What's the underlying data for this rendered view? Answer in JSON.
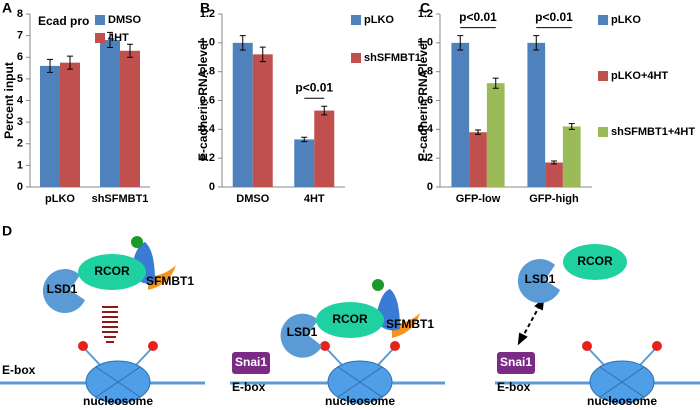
{
  "panel_labels": [
    "A",
    "B",
    "C",
    "D"
  ],
  "chart_data": [
    {
      "type": "bar",
      "title": "Ecad pro",
      "y_label": "Percent input",
      "categories": [
        "pLKO",
        "shSFMBT1"
      ],
      "series": [
        {
          "name": "DMSO",
          "color": "#4f81bd",
          "values": [
            5.6,
            6.8
          ],
          "errors": [
            0.3,
            0.35
          ]
        },
        {
          "name": "4HT",
          "color": "#c0504d",
          "values": [
            5.75,
            6.3
          ],
          "errors": [
            0.3,
            0.3
          ]
        }
      ],
      "ylim": [
        0,
        8
      ],
      "yticks": [
        0,
        1,
        2,
        3,
        4,
        5,
        6,
        7,
        8
      ],
      "legend": "upper right"
    },
    {
      "type": "bar",
      "y_label": "E-cadherin RNA level",
      "categories": [
        "DMSO",
        "4HT"
      ],
      "series": [
        {
          "name": "pLKO",
          "color": "#4f81bd",
          "values": [
            1.0,
            0.33
          ],
          "errors": [
            0.05,
            0.015
          ]
        },
        {
          "name": "shSFMBT1",
          "color": "#c0504d",
          "values": [
            0.92,
            0.53
          ],
          "errors": [
            0.05,
            0.03
          ]
        }
      ],
      "annotations": [
        "p<0.01"
      ],
      "ylim": [
        0,
        1.2
      ],
      "yticks": [
        0,
        0.2,
        0.4,
        0.6,
        0.8,
        {
          "value": 1,
          "label": "1.0"
        },
        1.2
      ],
      "legend": "right"
    },
    {
      "type": "bar",
      "y_label": "E-cadherin RNA level",
      "categories": [
        "GFP-low",
        "GFP-high"
      ],
      "series": [
        {
          "name": "pLKO",
          "color": "#4f81bd",
          "values": [
            1.0,
            1.0
          ],
          "errors": [
            0.05,
            0.05
          ]
        },
        {
          "name": "pLKO+4HT",
          "color": "#c0504d",
          "values": [
            0.38,
            0.17
          ],
          "errors": [
            0.015,
            0.01
          ]
        },
        {
          "name": "shSFMBT1+4HT",
          "color": "#9bbb59",
          "values": [
            0.72,
            0.42
          ],
          "errors": [
            0.035,
            0.02
          ]
        }
      ],
      "annotations": [
        "p<0.01",
        "p<0.01"
      ],
      "ylim": [
        0,
        1.2
      ],
      "yticks": [
        0,
        0.2,
        0.4,
        0.6,
        0.8,
        {
          "value": 1,
          "label": "1.0"
        },
        1.2
      ],
      "legend": "right"
    }
  ],
  "diagram": {
    "panels": [
      {
        "lsd1": "LSD1",
        "rcor": "RCOR",
        "sfmbt1": "SFMBT1",
        "ebox": "E-box",
        "nucleosome": "nucleosome"
      },
      {
        "snai1": "Snai1",
        "lsd1": "LSD1",
        "rcor": "RCOR",
        "sfmbt1": "SFMBT1",
        "ebox": "E-box",
        "nucleosome": "nucleosome"
      },
      {
        "lsd1": "LSD1",
        "rcor": "RCOR",
        "snai1": "Snai1",
        "ebox": "E-box",
        "nucleosome": "nucleosome"
      }
    ]
  }
}
